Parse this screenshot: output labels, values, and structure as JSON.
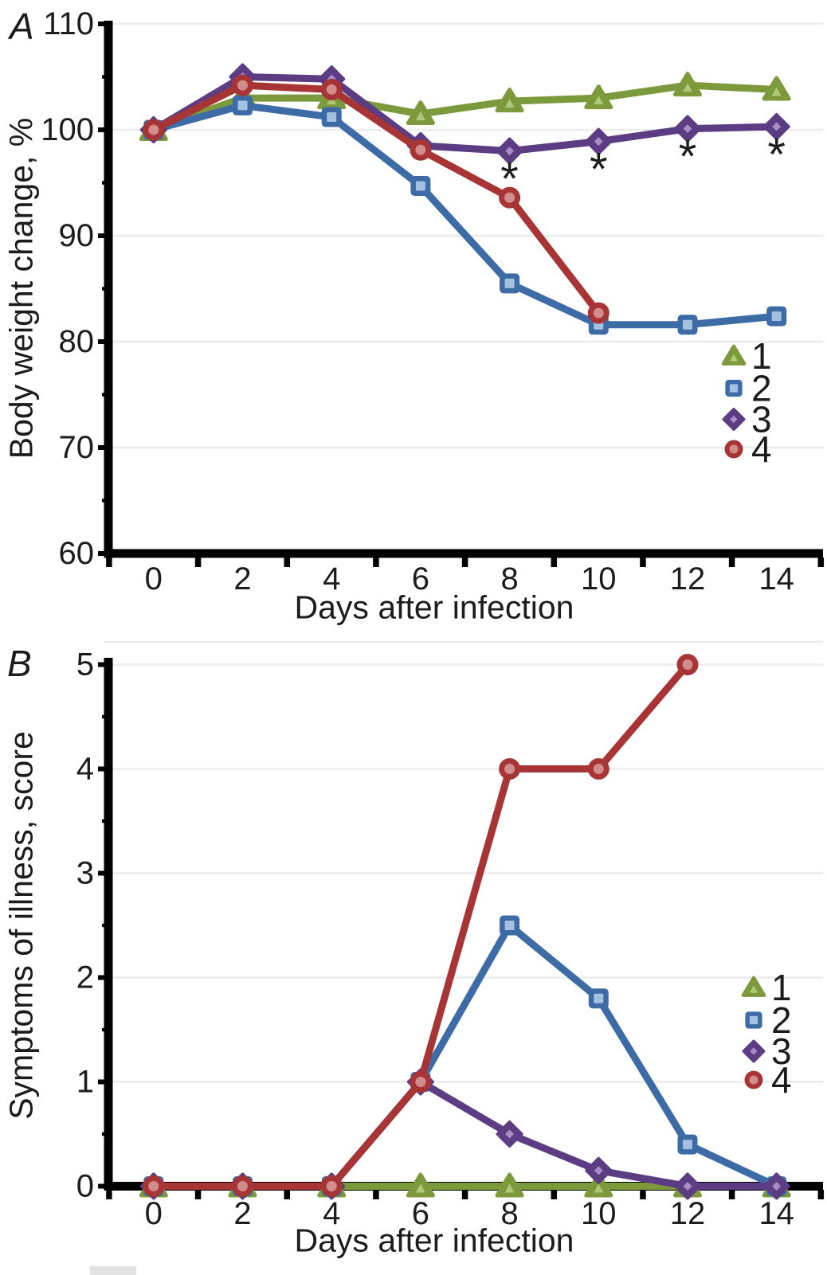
{
  "figure": {
    "background": "#ffffff",
    "panels": [
      {
        "label": "A",
        "y_axis_title": "Body weight change, %",
        "x_axis_title": "Days after infection"
      },
      {
        "label": "B",
        "y_axis_title": "Symptoms of illness, score",
        "x_axis_title": "Days after infection"
      }
    ],
    "colors": {
      "series1_green": "#7c9a3c",
      "series2_blue": "#3d6ba6",
      "series3_purple": "#5c3d83",
      "series4_red": "#a83535",
      "gridline": "#ececec",
      "axis": "#000000"
    }
  },
  "chart_data": [
    {
      "type": "line",
      "panel": "A",
      "xlabel": "Days after infection",
      "ylabel": "Body weight change, %",
      "x": [
        0,
        2,
        4,
        6,
        8,
        10,
        12,
        14
      ],
      "ylim": [
        60,
        110
      ],
      "y_major_ticks": [
        110,
        100,
        90,
        80,
        70,
        60
      ],
      "y_minor_ticks": [
        105,
        95,
        85,
        75,
        65
      ],
      "grid": "horizontal",
      "legend_position": "inside-right",
      "legend": [
        "1",
        "2",
        "3",
        "4"
      ],
      "series": [
        {
          "name": "1",
          "marker": "triangle",
          "color": "#7c9a3c",
          "inner": "#afc878",
          "values": [
            100,
            103,
            103,
            101.5,
            102.7,
            103,
            104.2,
            103.8
          ]
        },
        {
          "name": "2",
          "marker": "square",
          "color": "#3d6ba6",
          "inner": "#a4c1e1",
          "values": [
            100,
            102.3,
            101.2,
            94.7,
            85.5,
            81.6,
            81.6,
            82.4
          ]
        },
        {
          "name": "3",
          "marker": "diamond",
          "color": "#5c3d83",
          "inner": "#a78fc5",
          "values": [
            100,
            105,
            104.8,
            98.5,
            98,
            98.9,
            100.1,
            100.3
          ]
        },
        {
          "name": "4",
          "marker": "circle",
          "color": "#a83535",
          "inner": "#d28c8c",
          "values": [
            100,
            104.2,
            103.8,
            98.1,
            93.6,
            82.7,
            null,
            null
          ]
        }
      ],
      "annotations": {
        "significance_marker": "*",
        "days": [
          8,
          10,
          12,
          14
        ],
        "attached_to_series": "3"
      }
    },
    {
      "type": "line",
      "panel": "B",
      "xlabel": "Days after infection",
      "ylabel": "Symptoms of illness, score",
      "x": [
        0,
        2,
        4,
        6,
        8,
        10,
        12,
        14
      ],
      "ylim": [
        0,
        5
      ],
      "y_major_ticks": [
        5,
        4,
        3,
        2,
        1,
        0
      ],
      "y_minor_ticks": [
        4.5,
        3.5,
        2.5,
        1.5,
        0.5
      ],
      "grid": "horizontal",
      "legend_position": "inside-right",
      "legend": [
        "1",
        "2",
        "3",
        "4"
      ],
      "series": [
        {
          "name": "1",
          "marker": "triangle",
          "color": "#7c9a3c",
          "inner": "#afc878",
          "values": [
            0,
            0,
            0,
            0,
            0,
            0,
            0,
            0
          ]
        },
        {
          "name": "2",
          "marker": "square",
          "color": "#3d6ba6",
          "inner": "#a4c1e1",
          "values": [
            0,
            0,
            0,
            1,
            2.5,
            1.8,
            0.4,
            0
          ]
        },
        {
          "name": "3",
          "marker": "diamond",
          "color": "#5c3d83",
          "inner": "#a78fc5",
          "values": [
            0,
            0,
            0,
            1,
            0.5,
            0.15,
            0,
            0
          ]
        },
        {
          "name": "4",
          "marker": "circle",
          "color": "#a83535",
          "inner": "#d28c8c",
          "values": [
            0,
            0,
            0,
            1,
            4,
            4,
            5,
            null
          ]
        }
      ],
      "annotations": null
    }
  ]
}
